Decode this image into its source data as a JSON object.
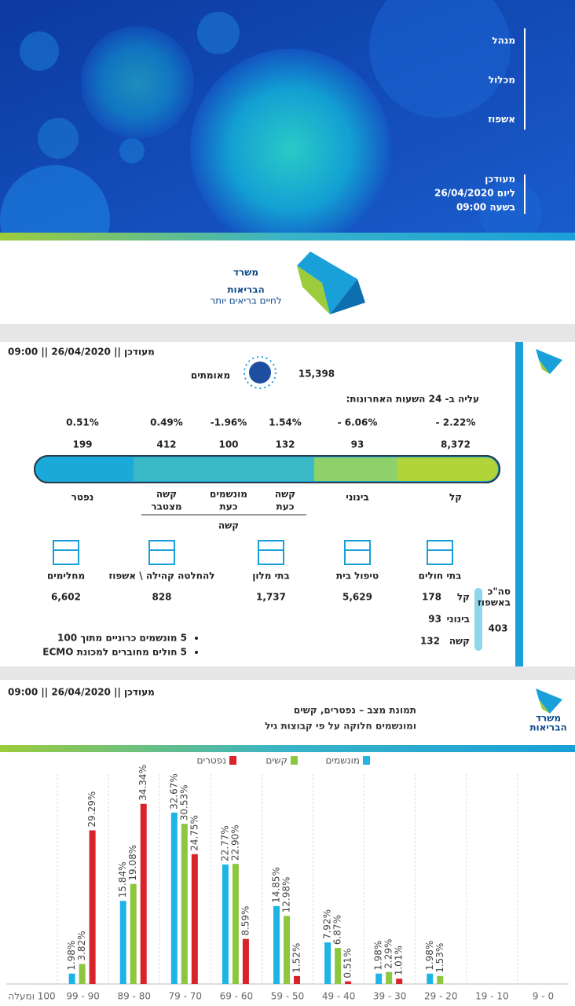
{
  "banner": {
    "title_lines": [
      "מנהל",
      "מכלול",
      "אשפוז"
    ],
    "updated_lines": [
      "מעודכן",
      "ליום 26/04/2020",
      "בשעה 09:00"
    ]
  },
  "ministry": {
    "name_lines": [
      "משרד",
      "הבריאות"
    ],
    "slogan": "לחיים בריאים יותר"
  },
  "dashboard": {
    "updated": "מעודכן || 26/04/2020 || 09:00",
    "confirmed": "15,398",
    "confirmed_label": "מאומתים",
    "increase_label": "עליה ב- 24 השעות האחרונות:",
    "levels": [
      {
        "label_lines": [
          "קל"
        ],
        "value": "8,372",
        "change": "- 2.22%"
      },
      {
        "label_lines": [
          "בינוני"
        ],
        "value": "93",
        "change": "- 6.06%"
      },
      {
        "label_lines": [
          "קשה",
          "כעת"
        ],
        "value": "132",
        "change": "1.54%"
      },
      {
        "label_lines": [
          "מונשמים",
          "כעת"
        ],
        "value": "100",
        "change": "-1.96%"
      },
      {
        "label_lines": [
          "קשה",
          "מצטבר"
        ],
        "value": "412",
        "change": "0.49%"
      },
      {
        "label_lines": [
          "נפטר"
        ],
        "value": "199",
        "change": "0.51%"
      }
    ],
    "severe_group": "קשה",
    "hospitals": {
      "label": "בתי חולים",
      "total_label_lines": [
        "סה\"כ",
        "באשפוז"
      ],
      "total": "403",
      "rows": [
        {
          "label": "קל",
          "value": "178"
        },
        {
          "label": "בינוני",
          "value": "93"
        },
        {
          "label": "קשה",
          "value": "132"
        }
      ]
    },
    "places": [
      {
        "label": "טיפול בית",
        "value": "5,629"
      },
      {
        "label": "בתי מלון",
        "value": "1,737"
      },
      {
        "label": "להחלטה קהילה \\ אשפוז",
        "value": "828"
      },
      {
        "label": "מחלימים",
        "value": "6,602"
      }
    ],
    "bullets": [
      "5 מונשמים כרוניים מתוך 100",
      "5 חולים מחוברים למכונת ECMO"
    ]
  },
  "chart_header": {
    "updated": "מעודכן || 26/04/2020 || 09:00",
    "ministry_lines": [
      "משרד",
      "הבריאות"
    ]
  },
  "chart_data": {
    "type": "bar",
    "title_lines": [
      "תמונת מצב – נפטרים, קשים",
      "ומונשמים חלוקה על פי קבוצות גיל"
    ],
    "categories": [
      "100 ומעלה",
      "90 - 99",
      "80 - 89",
      "70 - 79",
      "60 - 69",
      "50 - 59",
      "40 - 49",
      "30 - 39",
      "20 - 29",
      "10 - 19",
      "0 - 9"
    ],
    "ylim": [
      0,
      40
    ],
    "grid": true,
    "series": [
      {
        "name": "מונשמים",
        "color": "#1fb4e6",
        "values": [
          null,
          1.98,
          15.84,
          32.67,
          22.77,
          14.85,
          7.92,
          1.98,
          1.98,
          null,
          null
        ],
        "value_labels": [
          null,
          "1.98%",
          "15.84%",
          "32.67%",
          "22.77%",
          "14.85%",
          "7.92%",
          "1.98%",
          "1.98%",
          null,
          null
        ]
      },
      {
        "name": "קשים",
        "color": "#8dc63f",
        "values": [
          null,
          3.82,
          19.08,
          30.53,
          22.9,
          12.98,
          6.87,
          2.29,
          1.53,
          null,
          null
        ],
        "value_labels": [
          null,
          "3.82%",
          "19.08%",
          "30.53%",
          "22.90%",
          "12.98%",
          "6.87%",
          "2.29%",
          "1.53%",
          null,
          null
        ]
      },
      {
        "name": "נפטרים",
        "color": "#d9232a",
        "values": [
          null,
          29.29,
          34.34,
          24.75,
          8.59,
          1.52,
          0.51,
          1.01,
          null,
          null,
          null
        ],
        "value_labels": [
          null,
          "29.29%",
          "34.34%",
          "24.75%",
          "8.59%",
          "1.52%",
          "0.51%",
          "1.01%",
          null,
          null,
          null
        ]
      }
    ]
  }
}
